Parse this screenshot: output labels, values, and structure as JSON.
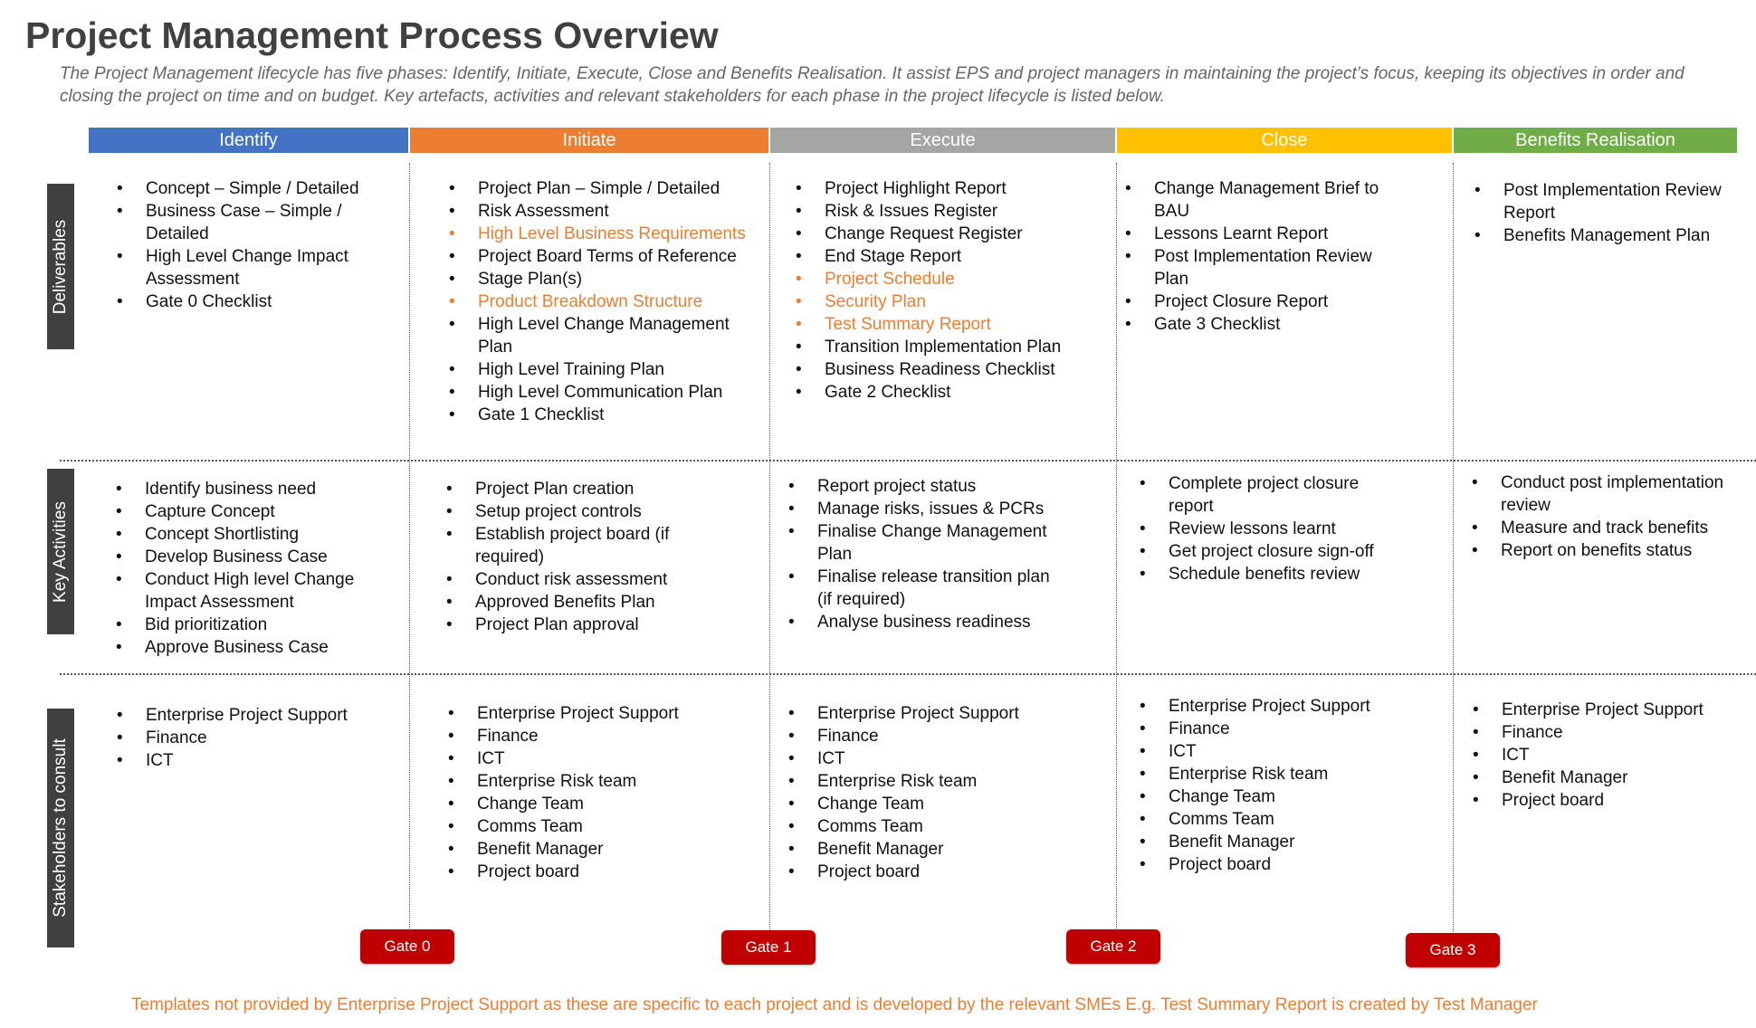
{
  "title": "Project Management Process Overview",
  "subtitle": "The Project Management lifecycle has five phases: Identify, Initiate, Execute, Close and Benefits Realisation. It assist EPS and project managers in maintaining the project’s focus, keeping its objectives in order and closing the project on time and on budget. Key artefacts, activities and relevant stakeholders for each phase in the project lifecycle is listed below.",
  "row_labels": [
    "Deliverables",
    "Key Activities",
    "Stakeholders to consult"
  ],
  "phases": [
    {
      "name": "Identify",
      "color": "#4472C4",
      "deliverables": [
        {
          "text": "Concept – Simple / Detailed"
        },
        {
          "text": "Business Case – Simple / Detailed"
        },
        {
          "text": "High Level Change Impact Assessment"
        },
        {
          "text": "Gate 0 Checklist"
        }
      ],
      "activities": [
        "Identify business need",
        "Capture Concept",
        "Concept Shortlisting",
        "Develop Business Case",
        "Conduct High level Change Impact Assessment",
        "Bid prioritization",
        "Approve Business Case"
      ],
      "stakeholders": [
        "Enterprise Project Support",
        "Finance",
        "ICT"
      ]
    },
    {
      "name": "Initiate",
      "color": "#ED7D31",
      "deliverables": [
        {
          "text": "Project Plan – Simple / Detailed"
        },
        {
          "text": "Risk Assessment"
        },
        {
          "text": "High Level Business Requirements",
          "highlight": true
        },
        {
          "text": "Project Board Terms of Reference"
        },
        {
          "text": "Stage Plan(s)"
        },
        {
          "text": "Product Breakdown Structure",
          "highlight": true
        },
        {
          "text": "High Level Change Management Plan"
        },
        {
          "text": "High Level Training Plan"
        },
        {
          "text": "High Level Communication Plan"
        },
        {
          "text": "Gate 1 Checklist"
        }
      ],
      "activities": [
        "Project Plan creation",
        "Setup project controls",
        "Establish project board (if required)",
        "Conduct risk assessment",
        "Approved Benefits Plan",
        "Project Plan approval"
      ],
      "stakeholders": [
        "Enterprise Project Support",
        "Finance",
        "ICT",
        "Enterprise Risk team",
        "Change Team",
        "Comms Team",
        "Benefit Manager",
        "Project board"
      ]
    },
    {
      "name": "Execute",
      "color": "#A5A5A5",
      "deliverables": [
        {
          "text": "Project Highlight Report"
        },
        {
          "text": "Risk & Issues Register"
        },
        {
          "text": "Change Request Register"
        },
        {
          "text": "End Stage Report"
        },
        {
          "text": "Project Schedule",
          "highlight": true
        },
        {
          "text": "Security Plan",
          "highlight": true
        },
        {
          "text": "Test Summary Report",
          "highlight": true
        },
        {
          "text": "Transition Implementation Plan"
        },
        {
          "text": "Business Readiness Checklist"
        },
        {
          "text": "Gate 2 Checklist"
        }
      ],
      "activities": [
        "Report project status",
        "Manage risks, issues & PCRs",
        "Finalise Change Management Plan",
        "Finalise release transition plan (if required)",
        "Analyse business readiness"
      ],
      "stakeholders": [
        "Enterprise Project Support",
        "Finance",
        "ICT",
        "Enterprise Risk team",
        "Change Team",
        "Comms Team",
        "Benefit Manager",
        "Project board"
      ]
    },
    {
      "name": "Close",
      "color": "#FFC000",
      "deliverables": [
        {
          "text": "Change Management Brief to BAU"
        },
        {
          "text": "Lessons Learnt Report"
        },
        {
          "text": "Post Implementation Review Plan"
        },
        {
          "text": "Project Closure Report"
        },
        {
          "text": "Gate 3 Checklist"
        }
      ],
      "activities": [
        "Complete project closure report",
        "Review lessons learnt",
        "Get project closure sign-off",
        "Schedule benefits review"
      ],
      "stakeholders": [
        "Enterprise Project Support",
        "Finance",
        "ICT",
        "Enterprise Risk team",
        "Change Team",
        "Comms Team",
        "Benefit Manager",
        "Project board"
      ]
    },
    {
      "name": "Benefits Realisation",
      "color": "#70AD47",
      "deliverables": [
        {
          "text": "Post Implementation Review Report"
        },
        {
          "text": "Benefits Management Plan"
        }
      ],
      "activities": [
        "Conduct post implementation review",
        "Measure and track benefits",
        "Report on benefits status"
      ],
      "stakeholders": [
        "Enterprise Project Support",
        "Finance",
        "ICT",
        "Benefit Manager",
        "Project board"
      ]
    }
  ],
  "gates": [
    "Gate 0",
    "Gate 1",
    "Gate 2",
    "Gate 3"
  ],
  "footer": "Templates not provided by Enterprise Project Support as these are specific to each project and is developed by the relevant SMEs E.g. Test Summary Report is created by Test Manager"
}
